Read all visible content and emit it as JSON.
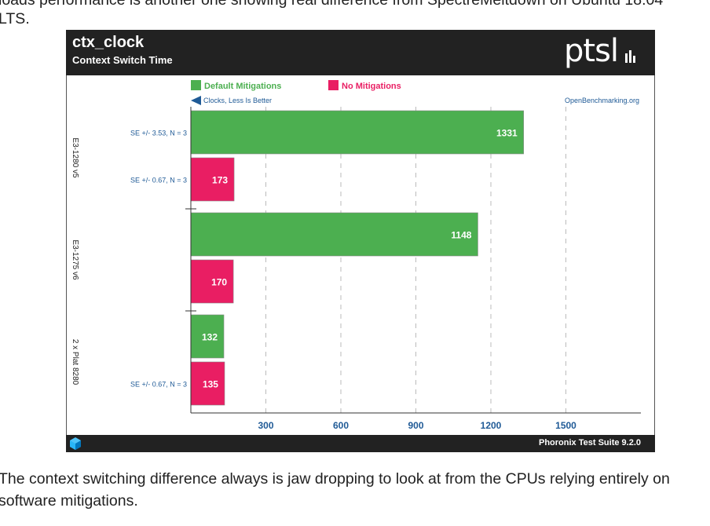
{
  "article": {
    "top_fragment": "loads performance is another one showing real difference from SpectreMeltdown on Ubuntu 18.04",
    "top_continuation": "LTS.",
    "bottom_line1": "The context switching difference always is jaw dropping to look at from the CPUs relying entirely on",
    "bottom_line2": "software mitigations."
  },
  "figure": {
    "title": "ctx_clock",
    "subtitle": "Context Switch Time",
    "logo_text": "ptsl",
    "footer": "Phoronix Test Suite 9.2.0",
    "direction_note": "Clocks, Less Is Better",
    "source": "OpenBenchmarking.org"
  },
  "colors": {
    "default_mitigations": "#4caf50",
    "no_mitigations": "#e91e63",
    "header_bg": "#222222",
    "axis_text": "#1f5a96"
  },
  "chart_data": {
    "type": "bar",
    "orientation": "horizontal",
    "title": "ctx_clock",
    "subtitle": "Context Switch Time",
    "categories": [
      "E3-1280 v5",
      "E3-1275 v6",
      "2 x Plat 8280"
    ],
    "series": [
      {
        "name": "Default Mitigations",
        "color": "#4caf50",
        "values": [
          1331,
          1148,
          132
        ],
        "se": [
          "SE +/- 3.53, N = 3",
          "",
          ""
        ]
      },
      {
        "name": "No Mitigations",
        "color": "#e91e63",
        "values": [
          173,
          170,
          135
        ],
        "se": [
          "SE +/- 0.67, N = 3",
          "",
          "SE +/- 0.67, N = 3"
        ]
      }
    ],
    "x_ticks": [
      300,
      600,
      900,
      1200,
      1500
    ],
    "xlim": [
      0,
      1800
    ],
    "grid": true,
    "legend_position": "top-left"
  }
}
